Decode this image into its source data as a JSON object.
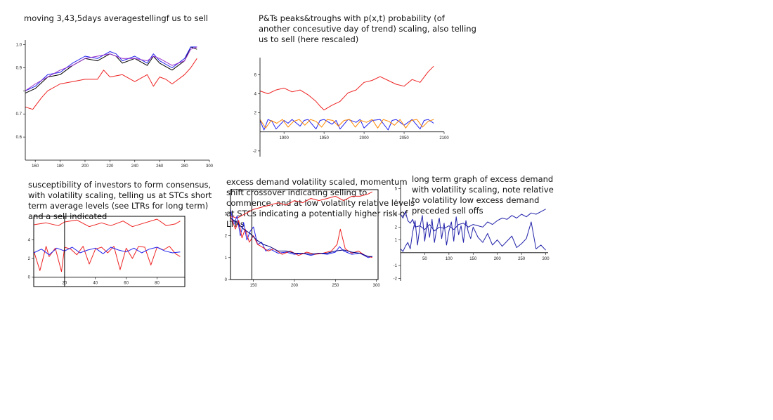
{
  "captions": {
    "c1": "moving 3,43,5days averagestellingf us to sell",
    "c2": "P&Ts peaks&troughs with p(x,t) probability (of\nanother concesutive day of trend) scaling, also telling\nus to sell (here rescaled)",
    "c3": "susceptibility of investors to form consensus,\nwith volatility scaling, telling us at STCs short\nterm average levels (see LTRs for long term)\nand a sell indicated",
    "c4": "excess demand volatility scaled, momentum\nshift crossover indicating selling to\ncommence, and at low volatility relative levels\nat STCs indicating a potentially higher risk of\nLTRs",
    "c5": "long term graph of excess demand\nwith volatility scaling, note relative\nto volatility low excess demand\npreceded sell offs"
  },
  "chart_data": [
    {
      "id": "p1",
      "type": "line",
      "xlim": [
        152,
        300
      ],
      "ylim": [
        0.5,
        1.02
      ],
      "xticks": [
        160,
        180,
        200,
        220,
        240,
        260,
        280,
        300
      ],
      "yticks": [
        0.6,
        0.7,
        0.8,
        0.9,
        1.0
      ],
      "yticklabels": [
        "0.6",
        "0.7",
        "",
        "0.9",
        "1.0"
      ],
      "series": [
        {
          "color": "#000000",
          "x": [
            152,
            160,
            170,
            180,
            190,
            200,
            210,
            220,
            225,
            230,
            240,
            250,
            255,
            260,
            270,
            280,
            285,
            290
          ],
          "y": [
            0.79,
            0.81,
            0.86,
            0.87,
            0.91,
            0.94,
            0.93,
            0.96,
            0.95,
            0.92,
            0.94,
            0.91,
            0.95,
            0.92,
            0.89,
            0.93,
            0.99,
            0.98
          ]
        },
        {
          "color": "#2222ee",
          "x": [
            152,
            160,
            170,
            180,
            190,
            200,
            210,
            220,
            225,
            230,
            240,
            250,
            255,
            260,
            270,
            280,
            285,
            290
          ],
          "y": [
            0.8,
            0.82,
            0.87,
            0.88,
            0.92,
            0.95,
            0.94,
            0.97,
            0.96,
            0.93,
            0.95,
            0.92,
            0.96,
            0.93,
            0.9,
            0.94,
            0.99,
            0.99
          ]
        },
        {
          "color": "#9933cc",
          "x": [
            152,
            160,
            170,
            180,
            190,
            200,
            210,
            220,
            225,
            230,
            240,
            250,
            255,
            260,
            270,
            280,
            285,
            290
          ],
          "y": [
            0.8,
            0.83,
            0.86,
            0.89,
            0.91,
            0.94,
            0.95,
            0.96,
            0.95,
            0.94,
            0.94,
            0.93,
            0.95,
            0.94,
            0.91,
            0.93,
            0.98,
            0.99
          ]
        },
        {
          "color": "#ee2222",
          "x": [
            152,
            158,
            165,
            170,
            180,
            190,
            200,
            210,
            215,
            220,
            230,
            240,
            250,
            255,
            260,
            265,
            270,
            280,
            285,
            290
          ],
          "y": [
            0.73,
            0.72,
            0.77,
            0.8,
            0.83,
            0.84,
            0.85,
            0.85,
            0.89,
            0.86,
            0.87,
            0.84,
            0.87,
            0.82,
            0.86,
            0.85,
            0.83,
            0.87,
            0.9,
            0.94
          ]
        }
      ]
    },
    {
      "id": "p2",
      "type": "line",
      "xlim": [
        1870,
        2100
      ],
      "ylim": [
        -2.6,
        7.8
      ],
      "xticks": [
        1900,
        1950,
        2000,
        2050,
        2100
      ],
      "yticks": [
        -2,
        2,
        4,
        6
      ],
      "series": [
        {
          "color": "#ee2222",
          "x": [
            1870,
            1880,
            1890,
            1900,
            1910,
            1920,
            1930,
            1940,
            1945,
            1950,
            1960,
            1970,
            1980,
            1990,
            2000,
            2010,
            2020,
            2030,
            2040,
            2050,
            2060,
            2070,
            2080,
            2087
          ],
          "y": [
            4.3,
            4.0,
            4.4,
            4.6,
            4.2,
            4.4,
            3.9,
            3.2,
            2.7,
            2.3,
            2.8,
            3.2,
            4.1,
            4.4,
            5.2,
            5.4,
            5.8,
            5.4,
            5.0,
            4.8,
            5.5,
            5.2,
            6.3,
            6.9
          ]
        },
        {
          "color": "#2222ee",
          "x": [
            1870,
            1875,
            1880,
            1885,
            1890,
            1900,
            1905,
            1910,
            1920,
            1925,
            1930,
            1940,
            1945,
            1950,
            1960,
            1965,
            1970,
            1980,
            1990,
            1995,
            2000,
            2010,
            2020,
            2030,
            2035,
            2040,
            2050,
            2060,
            2070,
            2075,
            2080,
            2087
          ],
          "y": [
            1.2,
            0.2,
            1.3,
            1.1,
            0.3,
            1.2,
            0.9,
            1.3,
            0.6,
            1.2,
            1.3,
            0.3,
            1.2,
            1.3,
            0.8,
            1.2,
            0.3,
            1.3,
            1.0,
            1.3,
            0.4,
            1.2,
            1.3,
            0.2,
            1.2,
            1.3,
            0.7,
            1.3,
            0.3,
            1.2,
            1.3,
            0.9
          ]
        },
        {
          "color": "#ff8800",
          "x": [
            1870,
            1877,
            1884,
            1891,
            1898,
            1905,
            1912,
            1919,
            1926,
            1933,
            1940,
            1947,
            1954,
            1961,
            1968,
            1975,
            1982,
            1989,
            1996,
            2003,
            2010,
            2017,
            2024,
            2031,
            2038,
            2045,
            2052,
            2059,
            2066,
            2073,
            2080,
            2087
          ],
          "y": [
            1.3,
            0.4,
            1.2,
            0.9,
            1.3,
            0.5,
            1.1,
            1.3,
            0.7,
            1.3,
            1.1,
            0.5,
            1.3,
            1.2,
            0.6,
            1.2,
            1.3,
            0.5,
            1.2,
            1.0,
            1.3,
            0.4,
            1.3,
            1.1,
            0.7,
            1.3,
            0.4,
            1.2,
            1.3,
            0.5,
            1.1,
            1.3
          ]
        }
      ]
    },
    {
      "id": "p3",
      "type": "line",
      "xlim": [
        0,
        98
      ],
      "ylim": [
        -1,
        6.5
      ],
      "xticks": [
        20,
        40,
        60,
        80
      ],
      "yticks": [
        0,
        2,
        4
      ],
      "vline": 20,
      "series": [
        {
          "color": "#ee2222",
          "x": [
            0,
            4,
            8,
            10,
            14,
            18,
            20,
            24,
            28,
            32,
            36,
            40,
            44,
            48,
            52,
            56,
            60,
            64,
            68,
            72,
            76,
            80,
            84,
            88,
            92,
            95
          ],
          "y": [
            2.8,
            0.7,
            3.3,
            2.2,
            3.1,
            0.6,
            3.2,
            3.0,
            2.4,
            3.3,
            1.4,
            3.0,
            3.2,
            2.6,
            3.3,
            0.8,
            3.1,
            2.0,
            3.3,
            3.2,
            1.3,
            3.2,
            2.9,
            3.3,
            2.5,
            2.2
          ]
        },
        {
          "color": "#2222ee",
          "x": [
            0,
            5,
            10,
            15,
            20,
            25,
            30,
            35,
            40,
            45,
            50,
            55,
            60,
            65,
            70,
            75,
            80,
            85,
            90,
            95
          ],
          "y": [
            2.6,
            3.0,
            2.4,
            3.1,
            2.8,
            3.2,
            2.6,
            2.9,
            3.1,
            2.5,
            3.2,
            2.9,
            2.7,
            3.1,
            2.6,
            3.0,
            3.2,
            2.8,
            2.6,
            2.7
          ]
        },
        {
          "color": "#ee2222",
          "x": [
            0,
            8,
            16,
            20,
            28,
            36,
            44,
            50,
            58,
            64,
            72,
            80,
            86,
            92,
            95
          ],
          "y": [
            5.6,
            5.8,
            5.5,
            5.9,
            6.1,
            5.4,
            5.8,
            5.5,
            6.0,
            5.4,
            5.8,
            6.2,
            5.5,
            5.7,
            6.0
          ]
        }
      ]
    },
    {
      "id": "p4",
      "type": "line",
      "xlim": [
        122,
        302
      ],
      "ylim": [
        0,
        4.1
      ],
      "xticks": [
        150,
        200,
        250,
        300
      ],
      "yticks": [
        0,
        1,
        2,
        3
      ],
      "vline": 148,
      "series": [
        {
          "color": "#ee2222",
          "x": [
            122,
            130,
            140,
            150,
            160,
            170,
            180,
            190,
            200,
            210,
            220,
            230,
            240,
            250,
            260,
            270,
            280,
            290,
            295
          ],
          "y": [
            2.9,
            2.8,
            3.0,
            3.2,
            3.3,
            3.4,
            3.5,
            3.4,
            3.6,
            3.5,
            3.7,
            3.6,
            3.7,
            3.8,
            3.6,
            3.8,
            3.8,
            3.9,
            4.0
          ]
        },
        {
          "color": "#2222ee",
          "x": [
            122,
            126,
            130,
            134,
            138,
            142,
            146,
            150,
            155,
            160,
            165,
            170,
            180,
            190,
            200,
            210,
            220,
            230,
            240,
            250,
            255,
            260,
            270,
            280,
            290,
            295
          ],
          "y": [
            3.2,
            2.5,
            2.9,
            2.0,
            2.6,
            1.8,
            2.2,
            2.4,
            1.6,
            1.7,
            1.3,
            1.4,
            1.2,
            1.25,
            1.15,
            1.2,
            1.1,
            1.2,
            1.15,
            1.25,
            1.5,
            1.3,
            1.15,
            1.2,
            1.0,
            1.05
          ]
        },
        {
          "color": "#ee2222",
          "x": [
            122,
            128,
            132,
            136,
            140,
            145,
            150,
            155,
            160,
            168,
            175,
            185,
            195,
            205,
            215,
            225,
            235,
            245,
            252,
            256,
            262,
            270,
            278,
            286,
            295
          ],
          "y": [
            2.9,
            2.3,
            2.7,
            1.9,
            2.3,
            1.7,
            2.0,
            1.6,
            1.5,
            1.3,
            1.4,
            1.15,
            1.3,
            1.1,
            1.25,
            1.15,
            1.2,
            1.3,
            1.6,
            2.3,
            1.4,
            1.2,
            1.3,
            1.1,
            1.0
          ]
        },
        {
          "color": "#000080",
          "x": [
            122,
            130,
            138,
            146,
            154,
            162,
            170,
            180,
            190,
            200,
            210,
            220,
            230,
            240,
            250,
            260,
            270,
            280,
            290,
            295
          ],
          "y": [
            2.8,
            2.6,
            2.3,
            2.1,
            1.8,
            1.6,
            1.5,
            1.3,
            1.3,
            1.2,
            1.2,
            1.15,
            1.2,
            1.2,
            1.3,
            1.35,
            1.25,
            1.2,
            1.05,
            1.05
          ]
        }
      ]
    },
    {
      "id": "p5",
      "type": "line",
      "xlim": [
        0,
        305
      ],
      "ylim": [
        -2.2,
        5.3
      ],
      "xticks": [
        50,
        100,
        150,
        200,
        250,
        300
      ],
      "yticks": [
        -2,
        -1,
        1,
        2,
        3,
        4,
        5
      ],
      "series": [
        {
          "color": "#2222aa",
          "x": [
            0,
            5,
            10,
            15,
            20,
            25,
            30,
            40,
            50,
            60,
            70,
            80,
            90,
            100,
            110,
            120,
            130,
            140,
            150,
            160,
            170,
            180,
            190,
            200,
            210,
            220,
            230,
            240,
            250,
            260,
            270,
            280,
            290,
            300
          ],
          "y": [
            3.0,
            2.7,
            3.2,
            2.5,
            2.3,
            2.6,
            2.0,
            2.1,
            1.8,
            2.2,
            1.7,
            2.0,
            1.9,
            2.1,
            1.8,
            2.2,
            2.3,
            2.0,
            2.2,
            2.1,
            2.0,
            2.4,
            2.2,
            2.5,
            2.7,
            2.6,
            2.9,
            2.7,
            3.0,
            2.8,
            3.1,
            3.0,
            3.2,
            3.4
          ]
        },
        {
          "color": "#2222aa",
          "x": [
            0,
            5,
            10,
            15,
            20,
            25,
            30,
            35,
            40,
            45,
            50,
            55,
            60,
            65,
            70,
            75,
            80,
            85,
            90,
            95,
            100,
            105,
            110,
            115,
            120,
            125,
            130,
            135,
            140,
            145,
            150,
            160,
            170,
            180,
            190,
            200,
            210,
            220,
            230,
            240,
            250,
            260,
            270,
            280,
            290,
            300
          ],
          "y": [
            0.3,
            0.1,
            0.5,
            0.8,
            0.3,
            1.6,
            2.5,
            0.6,
            2.0,
            2.9,
            0.9,
            2.4,
            1.2,
            2.6,
            0.8,
            1.9,
            2.7,
            1.1,
            2.3,
            0.6,
            1.7,
            2.4,
            0.9,
            2.8,
            1.4,
            2.1,
            0.8,
            2.5,
            1.6,
            1.1,
            2.0,
            1.2,
            0.8,
            1.5,
            0.6,
            1.0,
            0.5,
            0.9,
            1.3,
            0.4,
            0.7,
            1.1,
            2.4,
            0.3,
            0.6,
            0.2
          ]
        }
      ]
    }
  ]
}
